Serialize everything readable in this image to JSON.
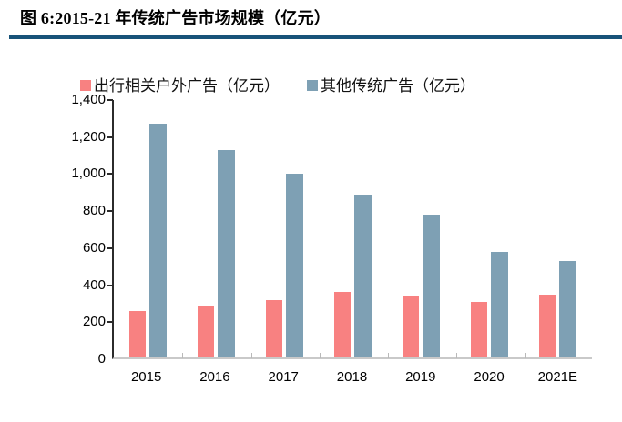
{
  "header": {
    "title": "图 6:2015-21 年传统广告市场规模（亿元）"
  },
  "chart_data": {
    "type": "bar",
    "title": "图 6:2015-21 年传统广告市场规模（亿元）",
    "categories": [
      "2015",
      "2016",
      "2017",
      "2018",
      "2019",
      "2020",
      "2021E"
    ],
    "series": [
      {
        "name": "出行相关户外广告（亿元）",
        "color": "#F88181",
        "values": [
          250,
          280,
          310,
          355,
          330,
          300,
          340
        ]
      },
      {
        "name": "其他传统广告（亿元）",
        "color": "#7EA0B4",
        "values": [
          1260,
          1120,
          990,
          880,
          770,
          570,
          520
        ]
      }
    ],
    "xlabel": "",
    "ylabel": "",
    "ylim": [
      0,
      1400
    ],
    "ytick_step": 200,
    "ytick_labels": [
      "0",
      "200",
      "400",
      "600",
      "800",
      "1,000",
      "1,200",
      "1,400"
    ],
    "grid": false,
    "legend_position": "top"
  },
  "colors": {
    "title_rule": "#175379",
    "y_axis_line": "#2b2b2b",
    "x_axis_line": "#c9c9c9"
  }
}
